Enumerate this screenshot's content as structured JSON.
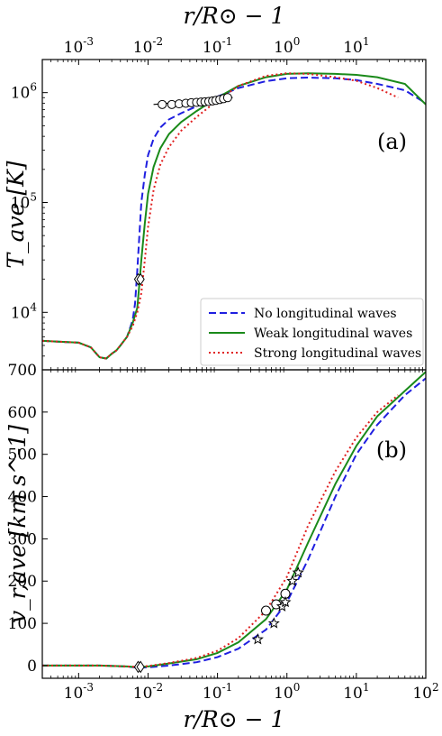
{
  "chart_data": [
    {
      "type": "line",
      "panel": "(a)",
      "xscale": "log",
      "yscale": "log",
      "xlim": [
        0.0003,
        100
      ],
      "ylim": [
        3000,
        2000000
      ],
      "xlabel_top": "r/R⊙ − 1",
      "ylabel": "T_ave [K]",
      "top_axis_ticks": [
        {
          "exp": "-3",
          "value": 0.001
        },
        {
          "exp": "-2",
          "value": 0.01
        },
        {
          "exp": "-1",
          "value": 0.1
        },
        {
          "exp": "0",
          "value": 1
        },
        {
          "exp": "1",
          "value": 10
        }
      ],
      "y_ticks": [
        {
          "exp": "4",
          "value": 10000
        },
        {
          "exp": "5",
          "value": 100000
        },
        {
          "exp": "6",
          "value": 1000000
        }
      ],
      "legend": {
        "position": "lower-right",
        "entries": [
          "No longitudinal waves",
          "Weak longitudinal waves",
          "Strong longitudinal waves"
        ]
      },
      "series": [
        {
          "name": "No longitudinal waves",
          "color": "#1f1fe0",
          "dash": "dashed",
          "x": [
            0.0003,
            0.001,
            0.0015,
            0.002,
            0.0025,
            0.003,
            0.0035,
            0.004,
            0.005,
            0.006,
            0.0065,
            0.007,
            0.0075,
            0.008,
            0.009,
            0.01,
            0.012,
            0.015,
            0.02,
            0.03,
            0.05,
            0.1,
            0.2,
            0.5,
            1,
            2,
            5,
            10,
            20,
            50,
            100
          ],
          "y": [
            5500,
            5300,
            4800,
            3900,
            3800,
            4200,
            4500,
            5000,
            6000,
            8500,
            12000,
            24000,
            50000,
            100000,
            180000,
            270000,
            380000,
            480000,
            570000,
            650000,
            750000,
            920000,
            1100000,
            1270000,
            1350000,
            1370000,
            1350000,
            1300000,
            1200000,
            1050000,
            800000
          ]
        },
        {
          "name": "Weak longitudinal waves",
          "color": "#1a8a1a",
          "dash": "solid",
          "x": [
            0.0003,
            0.001,
            0.0015,
            0.002,
            0.0025,
            0.003,
            0.0035,
            0.004,
            0.005,
            0.006,
            0.007,
            0.0075,
            0.008,
            0.009,
            0.01,
            0.012,
            0.015,
            0.02,
            0.03,
            0.05,
            0.1,
            0.2,
            0.5,
            1,
            2,
            5,
            10,
            20,
            50,
            100
          ],
          "y": [
            5500,
            5300,
            4800,
            3900,
            3800,
            4200,
            4500,
            5000,
            6000,
            8000,
            11000,
            18000,
            30000,
            65000,
            120000,
            210000,
            310000,
            420000,
            540000,
            680000,
            900000,
            1150000,
            1380000,
            1480000,
            1500000,
            1480000,
            1450000,
            1380000,
            1200000,
            780000
          ]
        },
        {
          "name": "Strong longitudinal waves",
          "color": "#e01f1f",
          "dash": "dotted",
          "x": [
            0.0003,
            0.001,
            0.0015,
            0.002,
            0.0025,
            0.003,
            0.0035,
            0.004,
            0.005,
            0.006,
            0.007,
            0.008,
            0.009,
            0.01,
            0.012,
            0.015,
            0.02,
            0.03,
            0.05,
            0.1,
            0.2,
            0.5,
            1,
            2,
            5,
            10,
            20,
            40
          ],
          "y": [
            5500,
            5300,
            4800,
            3900,
            3800,
            4200,
            4500,
            5000,
            6000,
            7500,
            10000,
            15000,
            30000,
            60000,
            130000,
            220000,
            320000,
            450000,
            600000,
            850000,
            1150000,
            1420000,
            1500000,
            1480000,
            1380000,
            1280000,
            1100000,
            900000
          ]
        }
      ],
      "observations": {
        "circles": [
          {
            "x": 0.016,
            "y": 780000
          },
          {
            "x": 0.022,
            "y": 780000
          },
          {
            "x": 0.028,
            "y": 790000
          },
          {
            "x": 0.035,
            "y": 800000
          },
          {
            "x": 0.042,
            "y": 810000
          },
          {
            "x": 0.05,
            "y": 815000
          },
          {
            "x": 0.058,
            "y": 820000
          },
          {
            "x": 0.066,
            "y": 825000
          },
          {
            "x": 0.075,
            "y": 830000
          },
          {
            "x": 0.085,
            "y": 840000
          },
          {
            "x": 0.095,
            "y": 850000
          },
          {
            "x": 0.108,
            "y": 865000
          },
          {
            "x": 0.122,
            "y": 880000
          },
          {
            "x": 0.14,
            "y": 900000
          }
        ],
        "errorbar_range": [
          0.012,
          0.165
        ],
        "diamonds": [
          {
            "x": 0.0072,
            "y": 20000
          },
          {
            "x": 0.0078,
            "y": 20000
          }
        ]
      }
    },
    {
      "type": "line",
      "panel": "(b)",
      "xscale": "log",
      "yscale": "linear",
      "xlim": [
        0.0003,
        100
      ],
      "ylim": [
        -30,
        700
      ],
      "xlabel": "r/R⊙ − 1",
      "ylabel": "v_r,ave [km s^-1]",
      "y_ticks": [
        "0",
        "100",
        "200",
        "300",
        "400",
        "500",
        "600",
        "700"
      ],
      "x_ticks": [
        {
          "exp": "-3",
          "value": 0.001
        },
        {
          "exp": "-2",
          "value": 0.01
        },
        {
          "exp": "-1",
          "value": 0.1
        },
        {
          "exp": "0",
          "value": 1
        },
        {
          "exp": "1",
          "value": 10
        },
        {
          "exp": "2",
          "value": 100
        }
      ],
      "series": [
        {
          "name": "No longitudinal waves",
          "color": "#1f1fe0",
          "dash": "dashed",
          "x": [
            0.0003,
            0.001,
            0.002,
            0.005,
            0.007,
            0.01,
            0.02,
            0.05,
            0.1,
            0.2,
            0.5,
            1,
            2,
            5,
            10,
            20,
            50,
            100
          ],
          "y": [
            0,
            0,
            0,
            -2,
            -5,
            -4,
            0,
            8,
            20,
            40,
            85,
            150,
            250,
            400,
            500,
            570,
            640,
            680
          ]
        },
        {
          "name": "Weak longitudinal waves",
          "color": "#1a8a1a",
          "dash": "solid",
          "x": [
            0.0003,
            0.001,
            0.002,
            0.005,
            0.007,
            0.01,
            0.02,
            0.05,
            0.1,
            0.2,
            0.5,
            1,
            2,
            5,
            10,
            20,
            50,
            100
          ],
          "y": [
            0,
            0,
            0,
            -2,
            -4,
            -2,
            5,
            15,
            30,
            55,
            110,
            180,
            290,
            430,
            520,
            590,
            650,
            695
          ]
        },
        {
          "name": "Strong longitudinal waves",
          "color": "#e01f1f",
          "dash": "dotted",
          "x": [
            0.0003,
            0.001,
            0.002,
            0.005,
            0.007,
            0.01,
            0.02,
            0.05,
            0.1,
            0.2,
            0.5,
            1,
            2,
            5,
            10,
            20,
            40
          ],
          "y": [
            0,
            0,
            0,
            -2,
            -3,
            -1,
            6,
            18,
            35,
            65,
            130,
            210,
            330,
            460,
            540,
            600,
            640
          ]
        }
      ],
      "observations": {
        "circles": [
          {
            "x": 0.5,
            "y": 130
          },
          {
            "x": 0.7,
            "y": 145
          },
          {
            "x": 0.95,
            "y": 170
          }
        ],
        "stars": [
          {
            "x": 0.38,
            "y": 62
          },
          {
            "x": 0.65,
            "y": 100
          },
          {
            "x": 0.85,
            "y": 140
          },
          {
            "x": 0.95,
            "y": 150
          },
          {
            "x": 1.2,
            "y": 200
          },
          {
            "x": 1.45,
            "y": 220
          }
        ],
        "diamonds": [
          {
            "x": 0.0072,
            "y": -3
          },
          {
            "x": 0.0078,
            "y": -3
          }
        ]
      }
    }
  ]
}
